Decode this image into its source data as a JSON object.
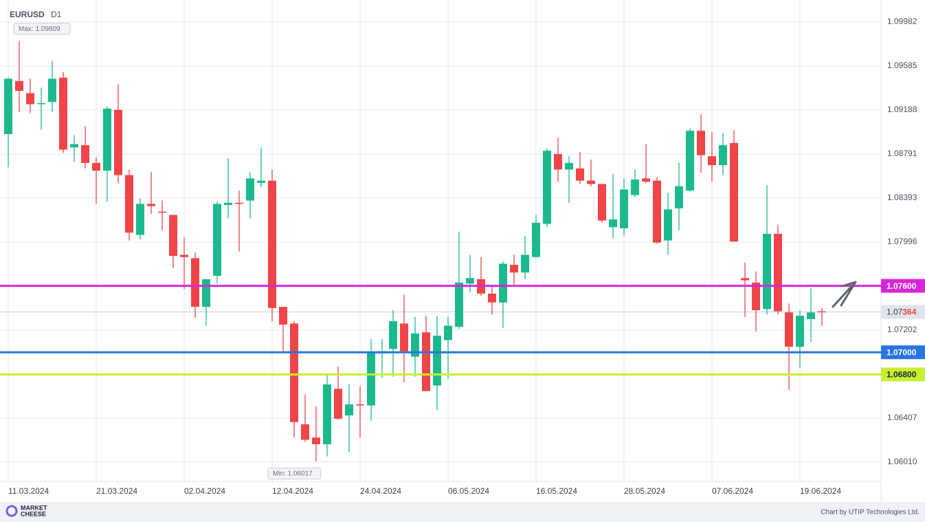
{
  "chart_data": {
    "type": "candlestick",
    "symbol": "EURUSD",
    "timeframe": "D1",
    "x": [
      "11.03.2024",
      null,
      null,
      null,
      null,
      null,
      null,
      null,
      "21.03.2024",
      null,
      null,
      null,
      null,
      null,
      null,
      null,
      "02.04.2024",
      null,
      null,
      null,
      null,
      null,
      null,
      null,
      "12.04.2024",
      null,
      null,
      null,
      null,
      null,
      null,
      null,
      "24.04.2024",
      null,
      null,
      null,
      null,
      null,
      null,
      null,
      "06.05.2024",
      null,
      null,
      null,
      null,
      null,
      null,
      null,
      "16.05.2024",
      null,
      null,
      null,
      null,
      null,
      null,
      null,
      "28.05.2024",
      null,
      null,
      null,
      null,
      null,
      null,
      null,
      "07.06.2024",
      null,
      null,
      null,
      null,
      null,
      null,
      null,
      "19.06.2024",
      null,
      null
    ],
    "open": [
      1.0897,
      1.0945,
      1.0934,
      1.0924,
      1.0926,
      1.0948,
      1.0885,
      1.0887,
      1.0871,
      1.0864,
      1.0919,
      1.086,
      1.0806,
      1.0834,
      1.0827,
      1.0824,
      1.0788,
      1.0785,
      1.0741,
      1.0769,
      1.0833,
      1.0835,
      1.0837,
      1.0853,
      1.0855,
      1.0741,
      1.0726,
      1.0635,
      1.0623,
      1.0617,
      1.0667,
      1.0643,
      1.0653,
      1.0652,
      1.0699,
      1.0703,
      1.0726,
      1.0696,
      1.0718,
      1.067,
      1.0711,
      1.0723,
      1.0762,
      1.0766,
      1.0753,
      1.0745,
      1.0779,
      1.0772,
      1.0786,
      1.0816,
      1.0879,
      1.0865,
      1.0866,
      1.0855,
      1.0852,
      1.0813,
      1.0812,
      1.0842,
      1.0857,
      1.0855,
      1.0801,
      1.083,
      1.0846,
      1.09,
      1.0877,
      1.0869,
      1.0889,
      1.0767,
      1.0763,
      1.0739,
      1.0807,
      1.0736,
      1.0705,
      1.073,
      1.0737
    ],
    "high": [
      1.0948,
      1.09809,
      1.0947,
      1.0939,
      1.0963,
      1.0953,
      1.0896,
      1.0904,
      1.0876,
      1.0922,
      1.0942,
      1.0865,
      1.0839,
      1.0863,
      1.0837,
      1.0824,
      1.0804,
      1.079,
      1.0766,
      1.0836,
      1.0875,
      1.0846,
      1.0863,
      1.0885,
      1.0865,
      1.0741,
      1.0728,
      1.0662,
      1.0651,
      1.068,
      1.0687,
      1.0671,
      1.0669,
      1.0712,
      1.0712,
      1.0738,
      1.0752,
      1.0732,
      1.0733,
      1.0733,
      1.0732,
      1.0809,
      1.0788,
      1.0786,
      1.0761,
      1.0782,
      1.0788,
      1.0805,
      1.0824,
      1.0884,
      1.0894,
      1.0877,
      1.0881,
      1.0874,
      1.0852,
      1.0861,
      1.0857,
      1.0865,
      1.0888,
      1.0858,
      1.0844,
      1.0871,
      1.0902,
      1.0915,
      1.0899,
      1.0898,
      1.0901,
      1.0781,
      1.0773,
      1.0851,
      1.0815,
      1.0744,
      1.0738,
      1.0758,
      1.074
    ],
    "low": [
      1.0867,
      1.0917,
      1.0916,
      1.0901,
      1.0917,
      1.088,
      1.0872,
      1.0866,
      1.0834,
      1.0836,
      1.0853,
      1.0801,
      1.0802,
      1.0825,
      1.081,
      1.0776,
      1.0757,
      1.0731,
      1.0724,
      1.0762,
      1.0821,
      1.0791,
      1.0821,
      1.0849,
      1.0728,
      1.07,
      1.0623,
      1.0619,
      1.06017,
      1.0606,
      1.0639,
      1.061,
      1.0623,
      1.0638,
      1.0677,
      1.0678,
      1.0673,
      1.0678,
      1.0665,
      1.0648,
      1.0676,
      1.0721,
      1.0754,
      1.0751,
      1.0734,
      1.0722,
      1.0761,
      1.0766,
      1.0785,
      1.0813,
      1.0854,
      1.0835,
      1.0852,
      1.085,
      1.0817,
      1.0803,
      1.0805,
      1.084,
      1.0853,
      1.0798,
      1.0788,
      1.081,
      1.0845,
      1.0862,
      1.0854,
      1.086,
      1.08,
      1.0732,
      1.0719,
      1.0734,
      1.0734,
      1.0666,
      1.0686,
      1.0709,
      1.0724
    ],
    "close": [
      1.0947,
      1.0936,
      1.0924,
      1.0925,
      1.0947,
      1.0883,
      1.0888,
      1.0871,
      1.0864,
      1.092,
      1.086,
      1.0808,
      1.0834,
      1.0832,
      1.0826,
      1.0787,
      1.0786,
      1.0741,
      1.0766,
      1.0834,
      1.0835,
      1.0834,
      1.0857,
      1.0855,
      1.074,
      1.0725,
      1.0637,
      1.0621,
      1.0617,
      1.0671,
      1.064,
      1.0653,
      1.0652,
      1.07,
      1.0701,
      1.0728,
      1.0701,
      1.0717,
      1.0665,
      1.0715,
      1.0724,
      1.0763,
      1.0767,
      1.0753,
      1.0745,
      1.078,
      1.0772,
      1.0788,
      1.0817,
      1.0882,
      1.0865,
      1.0871,
      1.0855,
      1.0852,
      1.0819,
      1.082,
      1.0847,
      1.0856,
      1.0854,
      1.0799,
      1.0829,
      1.085,
      1.09,
      1.0878,
      1.0869,
      1.0887,
      1.08,
      1.0765,
      1.0738,
      1.0807,
      1.0737,
      1.0705,
      1.0733,
      1.0736,
      1.07364
    ],
    "up_color": "#1cb98f",
    "down_color": "#ef4548",
    "ylim": [
      1.05834,
      1.10181
    ],
    "yticks": [
      1.09982,
      1.09585,
      1.09188,
      1.08791,
      1.08393,
      1.07996,
      1.07202,
      1.06407,
      {
        "value": 1.0601,
        "label": "1.06010"
      }
    ],
    "grid": true,
    "max_label": "Max: 1.09809",
    "min_label": "Min: 1.06017",
    "last_price": 1.07364,
    "levels": [
      {
        "value": 1.076,
        "label": "1.07600",
        "color": "#d726d9"
      },
      {
        "value": 1.07,
        "label": "1.07000",
        "color": "#2874e3"
      },
      {
        "value": 1.068,
        "label": "1.06800",
        "color": "#c6f031"
      }
    ],
    "brand": [
      "MARKET",
      "CHEESE"
    ],
    "credit": "Chart by UTIP Technologies Ltd."
  }
}
